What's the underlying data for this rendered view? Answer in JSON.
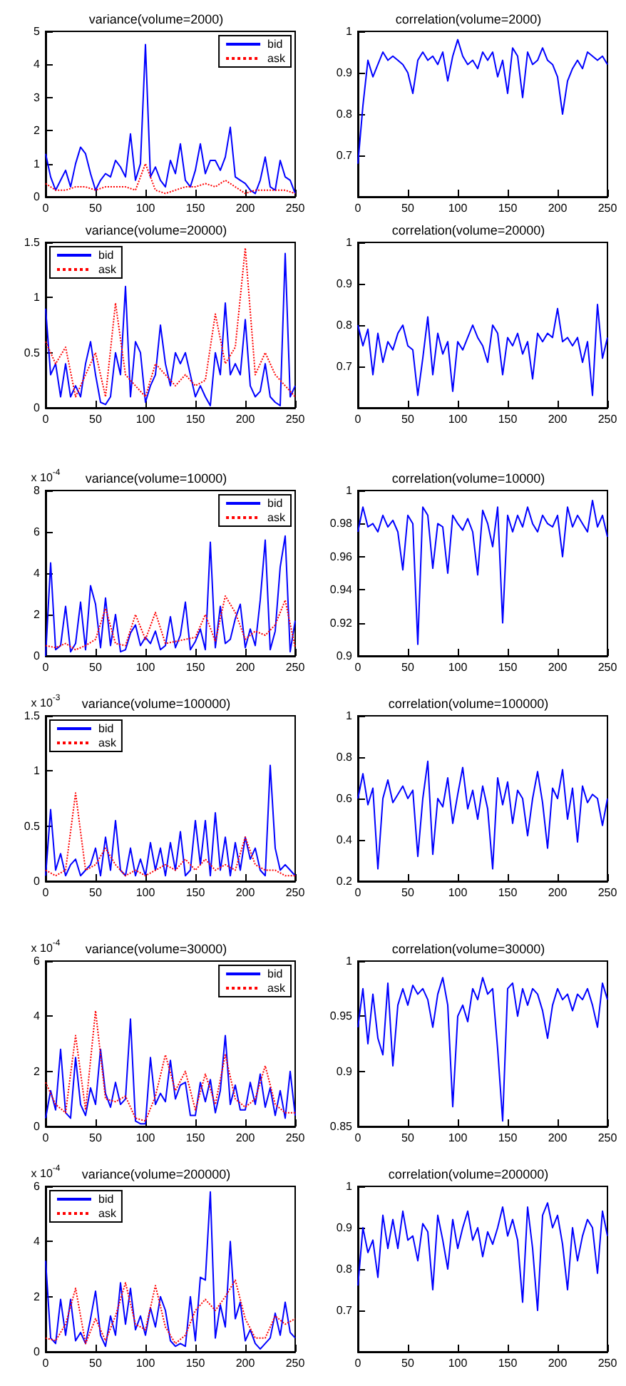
{
  "chart_data": [
    {
      "type": "line",
      "title": "variance(volume=2000)",
      "x": [
        0,
        5,
        10,
        15,
        20,
        25,
        30,
        35,
        40,
        45,
        50,
        55,
        60,
        65,
        70,
        75,
        80,
        85,
        90,
        95,
        100,
        105,
        110,
        115,
        120,
        125,
        130,
        135,
        140,
        145,
        150,
        155,
        160,
        165,
        170,
        175,
        180,
        185,
        190,
        195,
        200,
        205,
        210,
        215,
        220,
        225,
        230,
        235,
        240,
        245,
        250
      ],
      "xlim": [
        0,
        250
      ],
      "xticks": [
        0,
        50,
        100,
        150,
        200,
        250
      ],
      "ylim": [
        0,
        5
      ],
      "yticks": [
        0,
        1,
        2,
        3,
        4,
        5
      ],
      "legend": "top right",
      "series": [
        {
          "name": "bid",
          "color": "#0000ff",
          "line_style": "solid",
          "values": [
            1.3,
            0.6,
            0.2,
            0.5,
            0.8,
            0.3,
            1.0,
            1.5,
            1.3,
            0.7,
            0.2,
            0.5,
            0.7,
            0.6,
            1.1,
            0.9,
            0.6,
            1.9,
            0.5,
            1.0,
            4.6,
            0.6,
            0.9,
            0.5,
            0.3,
            1.1,
            0.7,
            1.6,
            0.5,
            0.3,
            0.8,
            1.6,
            0.7,
            1.1,
            1.1,
            0.8,
            1.2,
            2.1,
            0.6,
            0.5,
            0.4,
            0.2,
            0.1,
            0.5,
            1.2,
            0.3,
            0.2,
            1.1,
            0.6,
            0.5,
            0.1
          ]
        },
        {
          "name": "ask",
          "color": "#ff0000",
          "line_style": "dotted",
          "x": [
            0,
            10,
            20,
            30,
            40,
            50,
            60,
            70,
            80,
            90,
            100,
            110,
            120,
            130,
            140,
            150,
            160,
            170,
            180,
            190,
            200,
            210,
            220,
            230,
            240,
            250
          ],
          "values": [
            0.4,
            0.2,
            0.2,
            0.3,
            0.3,
            0.2,
            0.3,
            0.3,
            0.3,
            0.2,
            1.0,
            0.2,
            0.1,
            0.2,
            0.3,
            0.3,
            0.4,
            0.3,
            0.5,
            0.3,
            0.1,
            0.2,
            0.2,
            0.2,
            0.2,
            0.1
          ]
        }
      ]
    },
    {
      "type": "line",
      "title": "correlation(volume=2000)",
      "x": [
        0,
        5,
        10,
        15,
        20,
        25,
        30,
        35,
        40,
        45,
        50,
        55,
        60,
        65,
        70,
        75,
        80,
        85,
        90,
        95,
        100,
        105,
        110,
        115,
        120,
        125,
        130,
        135,
        140,
        145,
        150,
        155,
        160,
        165,
        170,
        175,
        180,
        185,
        190,
        195,
        200,
        205,
        210,
        215,
        220,
        225,
        230,
        235,
        240,
        245,
        250
      ],
      "xlim": [
        0,
        250
      ],
      "xticks": [
        0,
        50,
        100,
        150,
        200,
        250
      ],
      "ylim": [
        0.6,
        1
      ],
      "yticks": [
        0.7,
        0.8,
        0.9,
        1
      ],
      "series": [
        {
          "color": "#0000ff",
          "values": [
            0.68,
            0.82,
            0.93,
            0.89,
            0.92,
            0.95,
            0.93,
            0.94,
            0.93,
            0.92,
            0.9,
            0.85,
            0.93,
            0.95,
            0.93,
            0.94,
            0.92,
            0.95,
            0.88,
            0.94,
            0.98,
            0.94,
            0.92,
            0.93,
            0.91,
            0.95,
            0.93,
            0.95,
            0.89,
            0.93,
            0.85,
            0.96,
            0.94,
            0.84,
            0.95,
            0.92,
            0.93,
            0.96,
            0.93,
            0.92,
            0.89,
            0.8,
            0.88,
            0.91,
            0.93,
            0.91,
            0.95,
            0.94,
            0.93,
            0.94,
            0.92
          ]
        }
      ]
    },
    {
      "type": "line",
      "title": "variance(volume=20000)",
      "x": [
        0,
        5,
        10,
        15,
        20,
        25,
        30,
        35,
        40,
        45,
        50,
        55,
        60,
        65,
        70,
        75,
        80,
        85,
        90,
        95,
        100,
        105,
        110,
        115,
        120,
        125,
        130,
        135,
        140,
        145,
        150,
        155,
        160,
        165,
        170,
        175,
        180,
        185,
        190,
        195,
        200,
        205,
        210,
        215,
        220,
        225,
        230,
        235,
        240,
        245,
        250
      ],
      "xlim": [
        0,
        250
      ],
      "xticks": [
        0,
        50,
        100,
        150,
        200,
        250
      ],
      "ylim": [
        0,
        1.5
      ],
      "yticks": [
        0,
        0.5,
        1,
        1.5
      ],
      "legend": "top left",
      "series": [
        {
          "name": "bid",
          "color": "#0000ff",
          "line_style": "solid",
          "values": [
            0.9,
            0.3,
            0.4,
            0.1,
            0.4,
            0.1,
            0.2,
            0.1,
            0.4,
            0.6,
            0.3,
            0.05,
            0.03,
            0.1,
            0.5,
            0.3,
            1.1,
            0.1,
            0.6,
            0.5,
            0.05,
            0.2,
            0.3,
            0.75,
            0.4,
            0.2,
            0.5,
            0.4,
            0.5,
            0.3,
            0.1,
            0.2,
            0.1,
            0.02,
            0.5,
            0.3,
            0.95,
            0.3,
            0.4,
            0.3,
            0.8,
            0.2,
            0.1,
            0.15,
            0.4,
            0.1,
            0.05,
            0.02,
            1.4,
            0.1,
            0.2
          ]
        },
        {
          "name": "ask",
          "color": "#ff0000",
          "line_style": "dotted",
          "x": [
            0,
            10,
            20,
            30,
            40,
            50,
            60,
            70,
            80,
            90,
            100,
            110,
            120,
            130,
            140,
            150,
            160,
            170,
            180,
            190,
            200,
            210,
            220,
            230,
            240,
            250
          ],
          "values": [
            0.6,
            0.4,
            0.55,
            0.1,
            0.3,
            0.5,
            0.1,
            0.95,
            0.3,
            0.2,
            0.1,
            0.4,
            0.3,
            0.2,
            0.3,
            0.2,
            0.25,
            0.85,
            0.4,
            0.55,
            1.45,
            0.3,
            0.5,
            0.3,
            0.2,
            0.1
          ]
        }
      ]
    },
    {
      "type": "line",
      "title": "correlation(volume=20000)",
      "x": [
        0,
        5,
        10,
        15,
        20,
        25,
        30,
        35,
        40,
        45,
        50,
        55,
        60,
        65,
        70,
        75,
        80,
        85,
        90,
        95,
        100,
        105,
        110,
        115,
        120,
        125,
        130,
        135,
        140,
        145,
        150,
        155,
        160,
        165,
        170,
        175,
        180,
        185,
        190,
        195,
        200,
        205,
        210,
        215,
        220,
        225,
        230,
        235,
        240,
        245,
        250
      ],
      "xlim": [
        0,
        250
      ],
      "xticks": [
        0,
        50,
        100,
        150,
        200,
        250
      ],
      "ylim": [
        0.6,
        1
      ],
      "yticks": [
        0.7,
        0.8,
        0.9,
        1
      ],
      "series": [
        {
          "color": "#0000ff",
          "values": [
            0.8,
            0.75,
            0.79,
            0.68,
            0.78,
            0.71,
            0.76,
            0.74,
            0.78,
            0.8,
            0.75,
            0.74,
            0.63,
            0.72,
            0.82,
            0.68,
            0.78,
            0.73,
            0.76,
            0.64,
            0.76,
            0.74,
            0.77,
            0.8,
            0.77,
            0.75,
            0.71,
            0.8,
            0.78,
            0.68,
            0.77,
            0.75,
            0.78,
            0.73,
            0.76,
            0.67,
            0.78,
            0.76,
            0.78,
            0.77,
            0.84,
            0.76,
            0.77,
            0.75,
            0.77,
            0.71,
            0.76,
            0.63,
            0.85,
            0.72,
            0.77
          ]
        }
      ]
    },
    {
      "type": "line",
      "title": "variance(volume=10000)",
      "ylabel": "x 10$^{-4}$",
      "x": [
        0,
        5,
        10,
        15,
        20,
        25,
        30,
        35,
        40,
        45,
        50,
        55,
        60,
        65,
        70,
        75,
        80,
        85,
        90,
        95,
        100,
        105,
        110,
        115,
        120,
        125,
        130,
        135,
        140,
        145,
        150,
        155,
        160,
        165,
        170,
        175,
        180,
        185,
        190,
        195,
        200,
        205,
        210,
        215,
        220,
        225,
        230,
        235,
        240,
        245,
        250
      ],
      "xlim": [
        0,
        250
      ],
      "xticks": [
        0,
        50,
        100,
        150,
        200,
        250
      ],
      "ylim": [
        0,
        8
      ],
      "yticks": [
        0,
        2,
        4,
        6,
        8
      ],
      "legend": "top right",
      "series": [
        {
          "name": "bid",
          "color": "#0000ff",
          "line_style": "solid",
          "values": [
            0,
            4.5,
            0.3,
            0.5,
            2.4,
            0.2,
            0.6,
            2.6,
            0.3,
            3.4,
            2.5,
            0.4,
            2.8,
            0.5,
            2.0,
            0.2,
            0.3,
            1.1,
            1.5,
            0.5,
            0.9,
            0.6,
            1.2,
            0.3,
            0.5,
            1.9,
            0.4,
            1.0,
            2.6,
            0.3,
            0.7,
            1.3,
            0.3,
            5.5,
            0.4,
            2.4,
            0.6,
            0.8,
            1.8,
            2.5,
            0.4,
            1.3,
            0.5,
            2.7,
            5.6,
            0.3,
            1.2,
            4.3,
            5.8,
            0.2,
            1.7
          ]
        },
        {
          "name": "ask",
          "color": "#ff0000",
          "line_style": "dotted",
          "x": [
            0,
            10,
            20,
            30,
            40,
            50,
            60,
            70,
            80,
            90,
            100,
            110,
            120,
            130,
            140,
            150,
            160,
            170,
            180,
            190,
            200,
            210,
            220,
            230,
            240,
            250
          ],
          "values": [
            0.5,
            0.4,
            0.6,
            0.3,
            0.5,
            0.8,
            2.3,
            0.6,
            0.5,
            2.0,
            0.8,
            2.1,
            0.6,
            0.7,
            0.8,
            0.9,
            2.0,
            0.7,
            2.9,
            2.1,
            0.8,
            1.2,
            1.0,
            1.5,
            2.7,
            0.4
          ]
        }
      ]
    },
    {
      "type": "line",
      "title": "correlation(volume=10000)",
      "x": [
        0,
        5,
        10,
        15,
        20,
        25,
        30,
        35,
        40,
        45,
        50,
        55,
        60,
        65,
        70,
        75,
        80,
        85,
        90,
        95,
        100,
        105,
        110,
        115,
        120,
        125,
        130,
        135,
        140,
        145,
        150,
        155,
        160,
        165,
        170,
        175,
        180,
        185,
        190,
        195,
        200,
        205,
        210,
        215,
        220,
        225,
        230,
        235,
        240,
        245,
        250
      ],
      "xlim": [
        0,
        250
      ],
      "xticks": [
        0,
        50,
        100,
        150,
        200,
        250
      ],
      "ylim": [
        0.9,
        1
      ],
      "yticks": [
        0.9,
        0.92,
        0.94,
        0.96,
        0.98,
        1
      ],
      "series": [
        {
          "color": "#0000ff",
          "values": [
            0.975,
            0.99,
            0.978,
            0.98,
            0.975,
            0.985,
            0.978,
            0.982,
            0.975,
            0.952,
            0.985,
            0.98,
            0.907,
            0.99,
            0.985,
            0.953,
            0.98,
            0.978,
            0.95,
            0.985,
            0.98,
            0.976,
            0.983,
            0.975,
            0.949,
            0.988,
            0.98,
            0.966,
            0.99,
            0.92,
            0.985,
            0.975,
            0.985,
            0.978,
            0.99,
            0.98,
            0.975,
            0.985,
            0.98,
            0.978,
            0.985,
            0.96,
            0.99,
            0.978,
            0.985,
            0.98,
            0.975,
            0.994,
            0.978,
            0.985,
            0.972
          ]
        }
      ]
    },
    {
      "type": "line",
      "title": "variance(volume=100000)",
      "ylabel": "x 10$^{-3}$",
      "x": [
        0,
        5,
        10,
        15,
        20,
        25,
        30,
        35,
        40,
        45,
        50,
        55,
        60,
        65,
        70,
        75,
        80,
        85,
        90,
        95,
        100,
        105,
        110,
        115,
        120,
        125,
        130,
        135,
        140,
        145,
        150,
        155,
        160,
        165,
        170,
        175,
        180,
        185,
        190,
        195,
        200,
        205,
        210,
        215,
        220,
        225,
        230,
        235,
        240,
        245,
        250
      ],
      "xlim": [
        0,
        250
      ],
      "xticks": [
        0,
        50,
        100,
        150,
        200,
        250
      ],
      "ylim": [
        0,
        1.5
      ],
      "yticks": [
        0,
        0.5,
        1,
        1.5
      ],
      "legend": "top left",
      "series": [
        {
          "name": "bid",
          "color": "#0000ff",
          "line_style": "solid",
          "values": [
            0.05,
            0.65,
            0.1,
            0.25,
            0.05,
            0.15,
            0.2,
            0.05,
            0.1,
            0.15,
            0.3,
            0.05,
            0.4,
            0.1,
            0.55,
            0.1,
            0.05,
            0.3,
            0.05,
            0.2,
            0.05,
            0.35,
            0.1,
            0.3,
            0.05,
            0.35,
            0.1,
            0.45,
            0.05,
            0.1,
            0.55,
            0.15,
            0.55,
            0.05,
            0.62,
            0.1,
            0.4,
            0.05,
            0.35,
            0.1,
            0.4,
            0.2,
            0.3,
            0.1,
            0.05,
            1.05,
            0.3,
            0.1,
            0.15,
            0.1,
            0.05
          ]
        },
        {
          "name": "ask",
          "color": "#ff0000",
          "line_style": "dotted",
          "x": [
            0,
            10,
            20,
            30,
            40,
            50,
            60,
            70,
            80,
            90,
            100,
            110,
            120,
            130,
            140,
            150,
            160,
            170,
            180,
            190,
            200,
            210,
            220,
            230,
            240,
            250
          ],
          "values": [
            0.1,
            0.05,
            0.1,
            0.8,
            0.1,
            0.15,
            0.3,
            0.15,
            0.05,
            0.1,
            0.05,
            0.1,
            0.15,
            0.1,
            0.2,
            0.1,
            0.2,
            0.1,
            0.15,
            0.1,
            0.4,
            0.15,
            0.1,
            0.1,
            0.05,
            0.05
          ]
        }
      ]
    },
    {
      "type": "line",
      "title": "correlation(volume=100000)",
      "x": [
        0,
        5,
        10,
        15,
        20,
        25,
        30,
        35,
        40,
        45,
        50,
        55,
        60,
        65,
        70,
        75,
        80,
        85,
        90,
        95,
        100,
        105,
        110,
        115,
        120,
        125,
        130,
        135,
        140,
        145,
        150,
        155,
        160,
        165,
        170,
        175,
        180,
        185,
        190,
        195,
        200,
        205,
        210,
        215,
        220,
        225,
        230,
        235,
        240,
        245,
        250
      ],
      "xlim": [
        0,
        250
      ],
      "xticks": [
        0,
        50,
        100,
        150,
        200,
        250
      ],
      "ylim": [
        0.2,
        1
      ],
      "yticks": [
        0.2,
        0.4,
        0.6,
        0.8,
        1
      ],
      "series": [
        {
          "color": "#0000ff",
          "values": [
            0.6,
            0.72,
            0.57,
            0.65,
            0.26,
            0.6,
            0.69,
            0.58,
            0.62,
            0.66,
            0.6,
            0.64,
            0.32,
            0.6,
            0.78,
            0.33,
            0.6,
            0.56,
            0.7,
            0.48,
            0.62,
            0.75,
            0.55,
            0.64,
            0.5,
            0.66,
            0.55,
            0.26,
            0.7,
            0.57,
            0.68,
            0.48,
            0.64,
            0.6,
            0.42,
            0.6,
            0.73,
            0.58,
            0.36,
            0.65,
            0.6,
            0.74,
            0.5,
            0.65,
            0.39,
            0.66,
            0.58,
            0.62,
            0.6,
            0.47,
            0.6
          ]
        }
      ]
    },
    {
      "type": "line",
      "title": "variance(volume=30000)",
      "ylabel": "x 10$^{-4}$",
      "x": [
        0,
        5,
        10,
        15,
        20,
        25,
        30,
        35,
        40,
        45,
        50,
        55,
        60,
        65,
        70,
        75,
        80,
        85,
        90,
        95,
        100,
        105,
        110,
        115,
        120,
        125,
        130,
        135,
        140,
        145,
        150,
        155,
        160,
        165,
        170,
        175,
        180,
        185,
        190,
        195,
        200,
        205,
        210,
        215,
        220,
        225,
        230,
        235,
        240,
        245,
        250
      ],
      "xlim": [
        0,
        250
      ],
      "xticks": [
        0,
        50,
        100,
        150,
        200,
        250
      ],
      "ylim": [
        0,
        6
      ],
      "yticks": [
        0,
        2,
        4,
        6
      ],
      "legend": "top right",
      "series": [
        {
          "name": "bid",
          "color": "#0000ff",
          "line_style": "solid",
          "values": [
            0.3,
            1.3,
            0.6,
            2.8,
            0.5,
            0.3,
            2.5,
            0.8,
            0.4,
            1.4,
            0.8,
            2.8,
            1.2,
            0.7,
            1.6,
            0.8,
            1.0,
            3.9,
            0.2,
            0.1,
            0.1,
            2.5,
            0.8,
            1.2,
            0.9,
            2.4,
            1.0,
            1.5,
            1.6,
            0.4,
            0.4,
            1.6,
            0.9,
            1.7,
            0.5,
            1.3,
            3.3,
            0.8,
            1.5,
            0.6,
            0.6,
            1.6,
            0.8,
            1.9,
            0.7,
            1.4,
            0.4,
            1.3,
            0.3,
            2.0,
            0.4
          ]
        },
        {
          "name": "ask",
          "color": "#ff0000",
          "line_style": "dotted",
          "x": [
            0,
            10,
            20,
            30,
            40,
            50,
            60,
            70,
            80,
            90,
            100,
            110,
            120,
            130,
            140,
            150,
            160,
            170,
            180,
            190,
            200,
            210,
            220,
            230,
            240,
            250
          ],
          "values": [
            1.6,
            0.8,
            0.5,
            3.3,
            0.6,
            4.2,
            1.0,
            0.9,
            1.1,
            0.3,
            0.2,
            1.1,
            2.6,
            1.3,
            2.0,
            0.6,
            1.9,
            0.8,
            2.6,
            1.0,
            0.7,
            1.0,
            2.2,
            0.8,
            0.5,
            0.5
          ]
        }
      ]
    },
    {
      "type": "line",
      "title": "correlation(volume=30000)",
      "x": [
        0,
        5,
        10,
        15,
        20,
        25,
        30,
        35,
        40,
        45,
        50,
        55,
        60,
        65,
        70,
        75,
        80,
        85,
        90,
        95,
        100,
        105,
        110,
        115,
        120,
        125,
        130,
        135,
        140,
        145,
        150,
        155,
        160,
        165,
        170,
        175,
        180,
        185,
        190,
        195,
        200,
        205,
        210,
        215,
        220,
        225,
        230,
        235,
        240,
        245,
        250
      ],
      "xlim": [
        0,
        250
      ],
      "xticks": [
        0,
        50,
        100,
        150,
        200,
        250
      ],
      "ylim": [
        0.85,
        1
      ],
      "yticks": [
        0.85,
        0.9,
        0.95,
        1
      ],
      "series": [
        {
          "color": "#0000ff",
          "values": [
            0.94,
            0.975,
            0.925,
            0.97,
            0.93,
            0.915,
            0.98,
            0.905,
            0.96,
            0.975,
            0.96,
            0.978,
            0.97,
            0.975,
            0.965,
            0.94,
            0.97,
            0.985,
            0.96,
            0.868,
            0.95,
            0.96,
            0.945,
            0.975,
            0.965,
            0.985,
            0.97,
            0.975,
            0.92,
            0.855,
            0.975,
            0.98,
            0.95,
            0.975,
            0.96,
            0.975,
            0.97,
            0.955,
            0.93,
            0.96,
            0.975,
            0.965,
            0.97,
            0.955,
            0.97,
            0.965,
            0.975,
            0.96,
            0.94,
            0.98,
            0.965
          ]
        }
      ]
    },
    {
      "type": "line",
      "title": "variance(volume=200000)",
      "ylabel": "x 10$^{-4}$",
      "x": [
        0,
        5,
        10,
        15,
        20,
        25,
        30,
        35,
        40,
        45,
        50,
        55,
        60,
        65,
        70,
        75,
        80,
        85,
        90,
        95,
        100,
        105,
        110,
        115,
        120,
        125,
        130,
        135,
        140,
        145,
        150,
        155,
        160,
        165,
        170,
        175,
        180,
        185,
        190,
        195,
        200,
        205,
        210,
        215,
        220,
        225,
        230,
        235,
        240,
        245,
        250
      ],
      "xlim": [
        0,
        250
      ],
      "xticks": [
        0,
        50,
        100,
        150,
        200,
        250
      ],
      "ylim": [
        0,
        6
      ],
      "yticks": [
        0,
        2,
        4,
        6
      ],
      "legend": "top left",
      "series": [
        {
          "name": "bid",
          "color": "#0000ff",
          "line_style": "solid",
          "values": [
            3.3,
            0.5,
            0.3,
            1.9,
            0.6,
            1.9,
            0.4,
            0.7,
            0.3,
            1.2,
            2.2,
            0.6,
            0.2,
            1.3,
            0.6,
            2.5,
            1.0,
            2.3,
            0.8,
            1.3,
            0.6,
            1.6,
            0.9,
            2.0,
            1.5,
            0.4,
            0.2,
            0.3,
            0.2,
            2.0,
            0.4,
            2.7,
            2.6,
            5.8,
            0.5,
            1.7,
            0.9,
            4.0,
            1.2,
            1.8,
            0.4,
            0.8,
            0.3,
            0.1,
            0.3,
            0.5,
            1.4,
            0.6,
            1.8,
            0.7,
            0.5
          ]
        },
        {
          "name": "ask",
          "color": "#ff0000",
          "line_style": "dotted",
          "x": [
            0,
            10,
            20,
            30,
            40,
            50,
            60,
            70,
            80,
            90,
            100,
            110,
            120,
            130,
            140,
            150,
            160,
            170,
            180,
            190,
            200,
            210,
            220,
            230,
            240,
            250
          ],
          "values": [
            0.5,
            0.4,
            1.0,
            2.3,
            0.3,
            1.2,
            0.4,
            1.3,
            2.5,
            1.0,
            0.8,
            2.4,
            0.9,
            0.3,
            0.6,
            1.5,
            1.9,
            1.5,
            2.0,
            2.6,
            1.2,
            0.5,
            0.5,
            1.3,
            1.0,
            1.2
          ]
        }
      ]
    },
    {
      "type": "line",
      "title": "correlation(volume=200000)",
      "x": [
        0,
        5,
        10,
        15,
        20,
        25,
        30,
        35,
        40,
        45,
        50,
        55,
        60,
        65,
        70,
        75,
        80,
        85,
        90,
        95,
        100,
        105,
        110,
        115,
        120,
        125,
        130,
        135,
        140,
        145,
        150,
        155,
        160,
        165,
        170,
        175,
        180,
        185,
        190,
        195,
        200,
        205,
        210,
        215,
        220,
        225,
        230,
        235,
        240,
        245,
        250
      ],
      "xlim": [
        0,
        250
      ],
      "xticks": [
        0,
        50,
        100,
        150,
        200,
        250
      ],
      "ylim": [
        0.6,
        1
      ],
      "yticks": [
        0.7,
        0.8,
        0.9,
        1
      ],
      "series": [
        {
          "color": "#0000ff",
          "values": [
            0.76,
            0.9,
            0.84,
            0.87,
            0.78,
            0.93,
            0.85,
            0.92,
            0.85,
            0.94,
            0.87,
            0.88,
            0.82,
            0.91,
            0.89,
            0.75,
            0.93,
            0.87,
            0.8,
            0.92,
            0.85,
            0.9,
            0.94,
            0.87,
            0.9,
            0.83,
            0.89,
            0.86,
            0.9,
            0.95,
            0.88,
            0.92,
            0.87,
            0.72,
            0.95,
            0.85,
            0.7,
            0.93,
            0.96,
            0.9,
            0.93,
            0.86,
            0.75,
            0.9,
            0.82,
            0.88,
            0.92,
            0.9,
            0.79,
            0.94,
            0.88
          ]
        }
      ]
    }
  ]
}
